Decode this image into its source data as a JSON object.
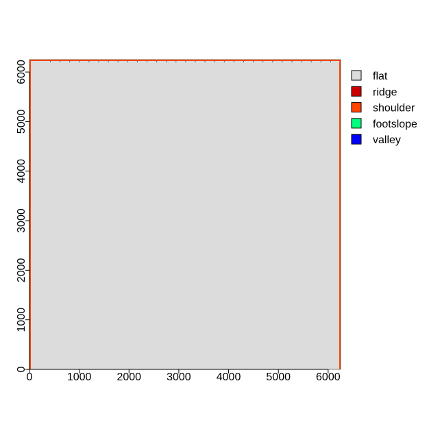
{
  "chart_data": {
    "type": "heatmap",
    "title": "",
    "xlabel": "",
    "ylabel": "",
    "xlim": [
      0,
      6250
    ],
    "ylim": [
      0,
      6250
    ],
    "x_ticks": [
      0,
      1000,
      2000,
      3000,
      4000,
      5000,
      6000
    ],
    "y_ticks": [
      0,
      1000,
      2000,
      3000,
      4000,
      5000,
      6000
    ],
    "x_tick_labels": [
      "0",
      "1000",
      "2000",
      "3000",
      "4000",
      "5000",
      "6000"
    ],
    "y_tick_labels": [
      "0",
      "1000",
      "2000",
      "3000",
      "4000",
      "5000",
      "6000"
    ],
    "dominant_class": "flat",
    "edge_class": "shoulder",
    "legend_position": "right",
    "legend": [
      {
        "label": "flat",
        "color": "#dcdcdc"
      },
      {
        "label": "ridge",
        "color": "#cd0000"
      },
      {
        "label": "shoulder",
        "color": "#ff4500"
      },
      {
        "label": "footslope",
        "color": "#00ff7f"
      },
      {
        "label": "valley",
        "color": "#0000ff"
      }
    ],
    "grid": false
  }
}
